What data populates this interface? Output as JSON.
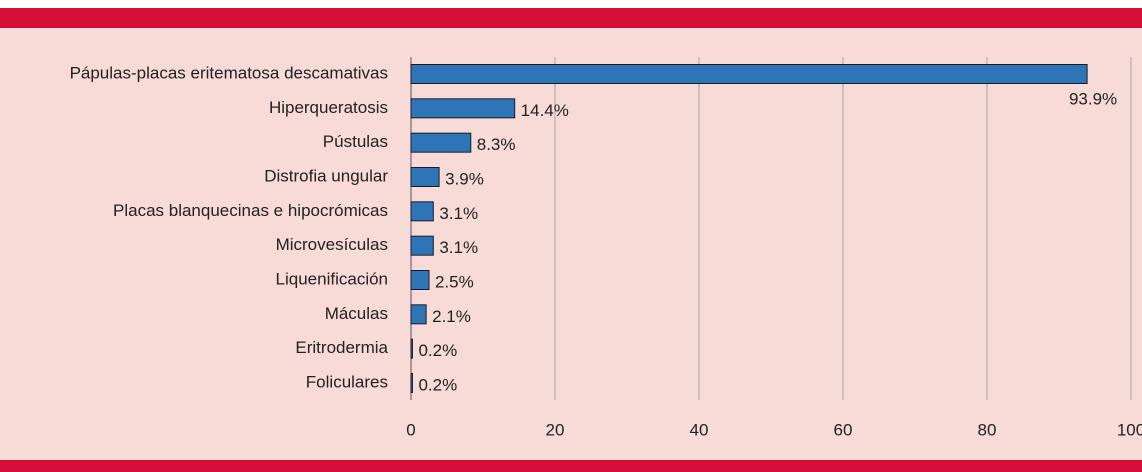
{
  "chart_data": {
    "type": "bar",
    "orientation": "horizontal",
    "categories": [
      "Pápulas-placas eritematosa descamativas",
      "Hiperqueratosis",
      "Pústulas",
      "Distrofia ungular",
      "Placas blanquecinas e hipocrómicas",
      "Microvesículas",
      "Liquenificación",
      "Máculas",
      "Eritrodermia",
      "Foliculares"
    ],
    "values": [
      93.9,
      14.4,
      8.3,
      3.9,
      3.1,
      3.1,
      2.5,
      2.1,
      0.2,
      0.2
    ],
    "value_labels": [
      "93.9%",
      "14.4%",
      "8.3%",
      "3.9%",
      "3.1%",
      "3.1%",
      "2.5%",
      "2.1%",
      "0.2%",
      "0.2%"
    ],
    "color": "#2e75b6",
    "xlim": [
      0,
      100
    ],
    "xticks": [
      0,
      20,
      40,
      60,
      80,
      100
    ],
    "grid": true
  }
}
